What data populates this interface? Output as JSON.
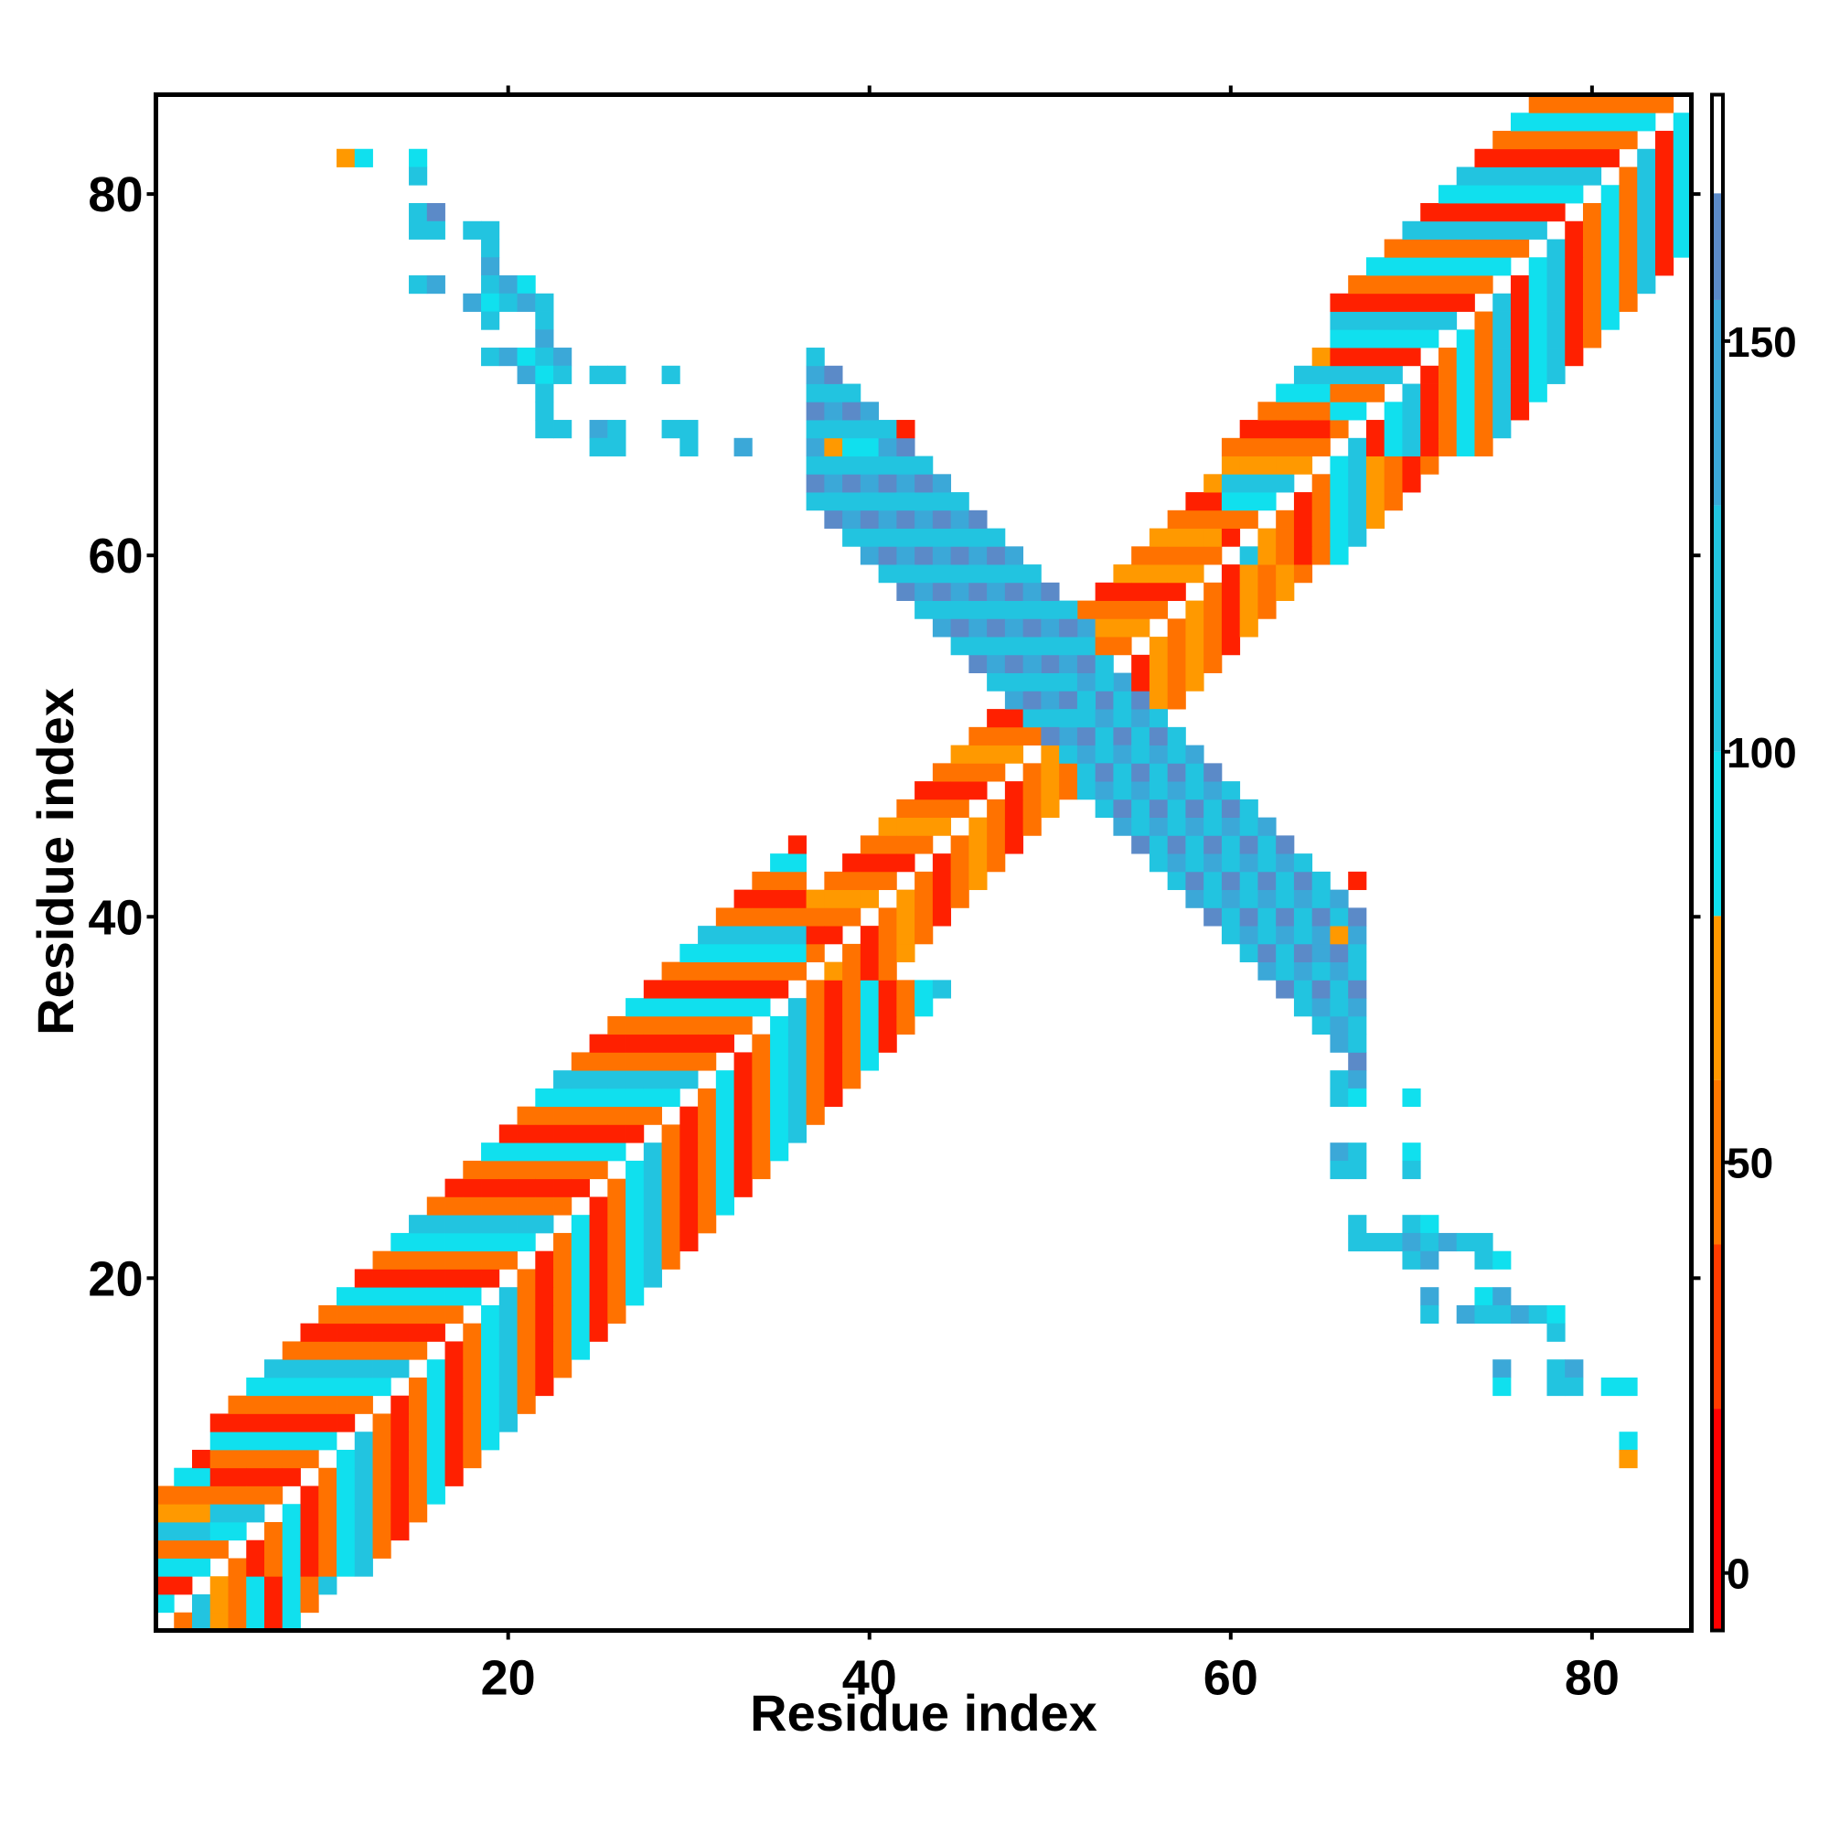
{
  "chart_data": {
    "type": "heatmap",
    "title": "",
    "xlabel": "Residue index",
    "ylabel": "Residue index",
    "xlim": [
      0.5,
      85.5
    ],
    "ylim": [
      0.5,
      85.5
    ],
    "x_ticks": [
      20,
      40,
      60,
      80
    ],
    "y_ticks": [
      20,
      40,
      60,
      80
    ],
    "colorbar": {
      "ticks": [
        0,
        50,
        100,
        150
      ],
      "range": [
        -7,
        180
      ],
      "segments": [
        {
          "from": -7,
          "to": 20,
          "color": "#ff0000"
        },
        {
          "from": 20,
          "to": 40,
          "color": "#ff3c00"
        },
        {
          "from": 40,
          "to": 60,
          "color": "#ff7800"
        },
        {
          "from": 60,
          "to": 80,
          "color": "#ff9900"
        },
        {
          "from": 80,
          "to": 100,
          "color": "#10e0ee"
        },
        {
          "from": 100,
          "to": 130,
          "color": "#22c4e0"
        },
        {
          "from": 130,
          "to": 155,
          "color": "#3ba8d8"
        },
        {
          "from": 155,
          "to": 168,
          "color": "#5b8ac8"
        },
        {
          "from": 168,
          "to": 180,
          "color": "#ffffff"
        }
      ]
    },
    "palette": {
      "A": "#ff9900",
      "B": "#ff7200",
      "R": "#ff2000",
      "C": "#10e0ee",
      "S": "#22c4e0",
      "D": "#3ba8d8",
      "E": "#5b8ac8"
    },
    "cell_value_of_code": {
      "R": 10,
      "B": 45,
      "A": 70,
      "C": 90,
      "S": 115,
      "D": 140,
      "E": 160
    },
    "diagonal_parallel": [
      {
        "start_residue": 1,
        "end_residue": 6,
        "offsets": [
          1,
          2,
          3,
          4,
          5,
          6,
          7
        ],
        "pattern": [
          "B",
          "C",
          "R",
          "C",
          "B",
          "S",
          "A"
        ]
      },
      {
        "start_residue": 4,
        "end_residue": 36,
        "offsets": [
          1,
          2,
          3,
          4,
          5,
          6,
          7,
          8
        ],
        "pattern": [
          "R",
          "B",
          "C",
          "R",
          "B",
          "C",
          "S",
          "B"
        ]
      },
      {
        "start_residue": 37,
        "end_residue": 51,
        "offsets": [
          1,
          2,
          3,
          4
        ],
        "pattern": [
          "A",
          "B",
          "R",
          "B"
        ]
      },
      {
        "start_residue": 52,
        "end_residue": 60,
        "offsets": [
          1,
          2,
          3,
          4,
          5
        ],
        "pattern": [
          "A",
          "B",
          "R",
          "A",
          "B"
        ]
      },
      {
        "start_residue": 60,
        "end_residue": 66,
        "offsets": [
          1,
          2,
          3,
          4,
          5,
          6
        ],
        "pattern": [
          "R",
          "B",
          "C",
          "S",
          "A",
          "B"
        ]
      },
      {
        "start_residue": 66,
        "end_residue": 85,
        "offsets": [
          1,
          2,
          3,
          4,
          5,
          6,
          7,
          8
        ],
        "pattern": [
          "S",
          "R",
          "B",
          "C",
          "B",
          "S",
          "R",
          "C"
        ]
      }
    ],
    "antiparallel_region": [
      {
        "x_from": 37,
        "x_to": 52,
        "x_plus_y_from": 100,
        "x_plus_y_to": 108,
        "codes": [
          "D",
          "S",
          "E",
          "S"
        ]
      },
      {
        "x_from": 52,
        "x_to": 67,
        "x_plus_y_from": 99,
        "x_plus_y_to": 107,
        "codes": [
          "S",
          "D",
          "E",
          "S"
        ]
      }
    ],
    "cells": [
      [
        11,
        82,
        "A"
      ],
      [
        12,
        82,
        "C"
      ],
      [
        15,
        82,
        "C"
      ],
      [
        15,
        81,
        "S"
      ],
      [
        15,
        79,
        "S"
      ],
      [
        16,
        79,
        "E"
      ],
      [
        15,
        78,
        "S"
      ],
      [
        16,
        78,
        "S"
      ],
      [
        18,
        78,
        "S"
      ],
      [
        19,
        78,
        "S"
      ],
      [
        19,
        77,
        "S"
      ],
      [
        19,
        76,
        "D"
      ],
      [
        15,
        75,
        "S"
      ],
      [
        16,
        75,
        "D"
      ],
      [
        19,
        75,
        "S"
      ],
      [
        20,
        75,
        "D"
      ],
      [
        21,
        75,
        "C"
      ],
      [
        18,
        74,
        "D"
      ],
      [
        19,
        74,
        "C"
      ],
      [
        20,
        74,
        "S"
      ],
      [
        21,
        74,
        "D"
      ],
      [
        22,
        74,
        "S"
      ],
      [
        19,
        73,
        "S"
      ],
      [
        22,
        73,
        "S"
      ],
      [
        22,
        72,
        "D"
      ],
      [
        19,
        71,
        "S"
      ],
      [
        20,
        71,
        "D"
      ],
      [
        21,
        71,
        "C"
      ],
      [
        22,
        71,
        "S"
      ],
      [
        23,
        71,
        "D"
      ],
      [
        21,
        70,
        "D"
      ],
      [
        22,
        70,
        "C"
      ],
      [
        23,
        70,
        "S"
      ],
      [
        25,
        70,
        "S"
      ],
      [
        26,
        70,
        "S"
      ],
      [
        29,
        70,
        "S"
      ],
      [
        22,
        69,
        "S"
      ],
      [
        22,
        68,
        "S"
      ],
      [
        22,
        67,
        "S"
      ],
      [
        23,
        67,
        "S"
      ],
      [
        25,
        67,
        "D"
      ],
      [
        26,
        67,
        "S"
      ],
      [
        29,
        67,
        "S"
      ],
      [
        30,
        67,
        "S"
      ],
      [
        25,
        66,
        "S"
      ],
      [
        26,
        66,
        "S"
      ],
      [
        30,
        66,
        "S"
      ],
      [
        33,
        66,
        "D"
      ],
      [
        38,
        66,
        "A"
      ],
      [
        39,
        66,
        "C"
      ],
      [
        40,
        66,
        "C"
      ],
      [
        42,
        67,
        "R"
      ],
      [
        67,
        42,
        "R"
      ],
      [
        66,
        39,
        "A"
      ],
      [
        65,
        38,
        "D"
      ],
      [
        66,
        34,
        "D"
      ],
      [
        66,
        31,
        "S"
      ],
      [
        67,
        31,
        "D"
      ],
      [
        66,
        30,
        "S"
      ],
      [
        67,
        30,
        "C"
      ],
      [
        70,
        30,
        "C"
      ],
      [
        66,
        27,
        "D"
      ],
      [
        67,
        27,
        "S"
      ],
      [
        70,
        27,
        "C"
      ],
      [
        66,
        26,
        "S"
      ],
      [
        67,
        26,
        "S"
      ],
      [
        70,
        26,
        "S"
      ],
      [
        67,
        23,
        "S"
      ],
      [
        70,
        23,
        "S"
      ],
      [
        71,
        23,
        "C"
      ],
      [
        67,
        22,
        "S"
      ],
      [
        68,
        22,
        "S"
      ],
      [
        69,
        22,
        "S"
      ],
      [
        70,
        22,
        "D"
      ],
      [
        71,
        22,
        "S"
      ],
      [
        72,
        22,
        "D"
      ],
      [
        73,
        22,
        "S"
      ],
      [
        74,
        22,
        "S"
      ],
      [
        70,
        21,
        "S"
      ],
      [
        71,
        21,
        "D"
      ],
      [
        74,
        21,
        "S"
      ],
      [
        75,
        21,
        "C"
      ],
      [
        71,
        19,
        "D"
      ],
      [
        74,
        19,
        "C"
      ],
      [
        75,
        19,
        "D"
      ],
      [
        73,
        18,
        "D"
      ],
      [
        74,
        18,
        "S"
      ],
      [
        75,
        18,
        "S"
      ],
      [
        76,
        18,
        "D"
      ],
      [
        77,
        18,
        "S"
      ],
      [
        78,
        18,
        "C"
      ],
      [
        71,
        18,
        "S"
      ],
      [
        78,
        17,
        "S"
      ],
      [
        75,
        15,
        "D"
      ],
      [
        78,
        15,
        "S"
      ],
      [
        79,
        15,
        "D"
      ],
      [
        75,
        14,
        "C"
      ],
      [
        78,
        14,
        "S"
      ],
      [
        79,
        14,
        "S"
      ],
      [
        81,
        14,
        "C"
      ],
      [
        82,
        14,
        "C"
      ],
      [
        82,
        11,
        "C"
      ],
      [
        82,
        10,
        "A"
      ]
    ]
  }
}
